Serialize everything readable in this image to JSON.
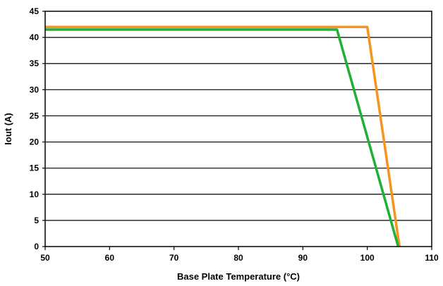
{
  "chart_data": {
    "type": "line",
    "title": "",
    "xlabel": "Base Plate Temperature (°C)",
    "ylabel": "Iout (A)",
    "xlim": [
      50,
      110
    ],
    "ylim": [
      0,
      45
    ],
    "x_ticks": [
      50,
      60,
      70,
      80,
      90,
      100,
      110
    ],
    "y_ticks": [
      0,
      5,
      10,
      15,
      20,
      25,
      30,
      35,
      40,
      45
    ],
    "grid": "horizontal",
    "legend": "none",
    "series": [
      {
        "color": "#f7941d",
        "points": [
          [
            50,
            42
          ],
          [
            100,
            42
          ],
          [
            105,
            0
          ]
        ]
      },
      {
        "color": "#1fb034",
        "points": [
          [
            50,
            41.5
          ],
          [
            95.3,
            41.5
          ],
          [
            104.8,
            0
          ]
        ]
      }
    ]
  }
}
